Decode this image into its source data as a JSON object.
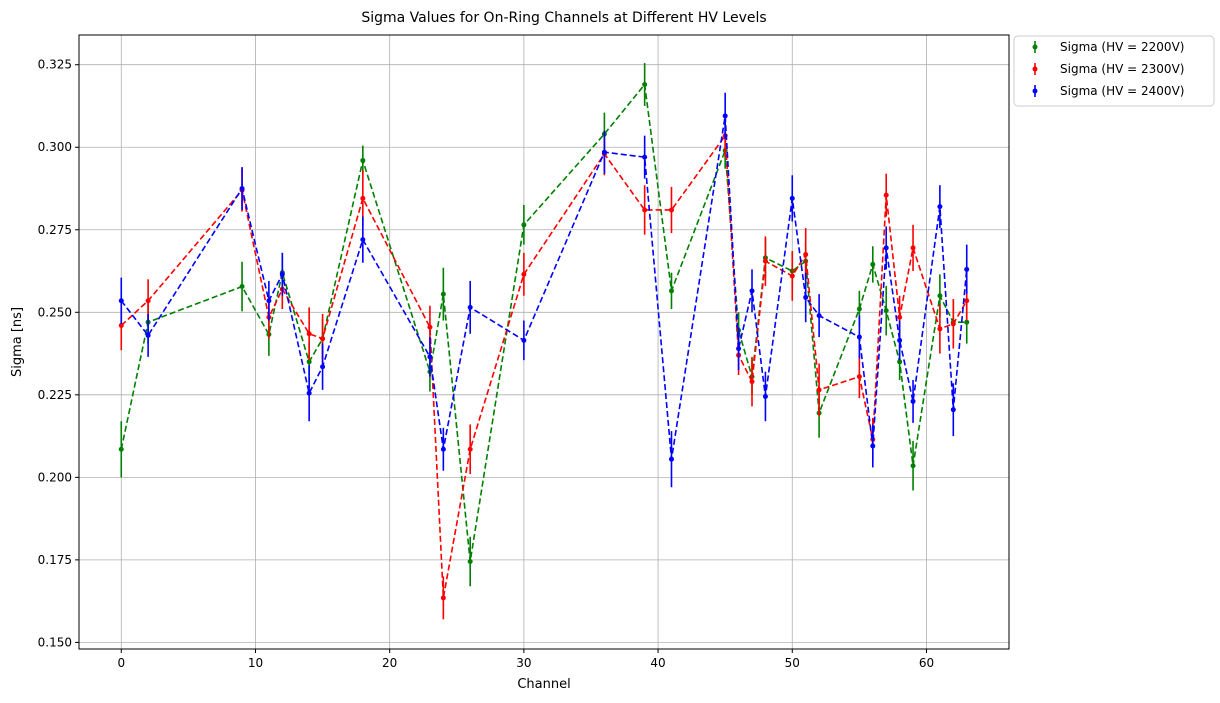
{
  "chart_data": {
    "type": "line",
    "title": "Sigma Values for On-Ring Channels at Different HV Levels",
    "xlabel": "Channel",
    "ylabel": "Sigma [ns]",
    "xlim": [
      -3.15,
      66.15
    ],
    "ylim": [
      0.148,
      0.334
    ],
    "xticks": [
      0,
      10,
      20,
      30,
      40,
      50,
      60
    ],
    "xtick_labels": [
      "0",
      "10",
      "20",
      "30",
      "40",
      "50",
      "60"
    ],
    "yticks": [
      0.15,
      0.175,
      0.2,
      0.225,
      0.25,
      0.275,
      0.3,
      0.325
    ],
    "ytick_labels": [
      "0.150",
      "0.175",
      "0.200",
      "0.225",
      "0.250",
      "0.275",
      "0.300",
      "0.325"
    ],
    "grid": true,
    "legend_position": "outside-top-right",
    "x": [
      0,
      2,
      9,
      11,
      12,
      14,
      15,
      18,
      23,
      24,
      26,
      30,
      36,
      39,
      41,
      45,
      46,
      47,
      48,
      50,
      51,
      52,
      55,
      56,
      57,
      58,
      59,
      61,
      62,
      63
    ],
    "series": [
      {
        "name": "Sigma (HV = 2200V)",
        "color": "#008000",
        "values": [
          0.2085,
          0.247,
          0.2578,
          0.2433,
          0.262,
          0.235,
          0.242,
          0.296,
          0.232,
          0.2555,
          0.1745,
          0.2765,
          0.304,
          0.319,
          0.2565,
          0.299,
          0.2445,
          0.2305,
          0.2665,
          0.2625,
          0.2655,
          0.2195,
          0.251,
          0.2645,
          0.2505,
          0.235,
          0.2035,
          0.255,
          0.247,
          0.247
        ],
        "errors": [
          0.0085,
          0.0065,
          0.0075,
          0.0065,
          0.006,
          0.006,
          0.006,
          0.0045,
          0.006,
          0.008,
          0.0075,
          0.006,
          0.0065,
          0.0065,
          0.0055,
          0.0055,
          0.0055,
          0.0055,
          0.006,
          0.006,
          0.006,
          0.0075,
          0.0055,
          0.0055,
          0.0075,
          0.0055,
          0.0075,
          0.0065,
          0.0065,
          0.0065
        ]
      },
      {
        "name": "Sigma (HV = 2300V)",
        "color": "#ff0000",
        "values": [
          0.246,
          0.2535,
          0.287,
          0.2485,
          0.257,
          0.2435,
          0.242,
          0.2845,
          0.2455,
          0.1635,
          0.2085,
          0.2615,
          0.298,
          0.281,
          0.281,
          0.3035,
          0.237,
          0.229,
          0.2655,
          0.261,
          0.2675,
          0.2265,
          0.2305,
          0.2115,
          0.2855,
          0.2485,
          0.2695,
          0.245,
          0.2465,
          0.2535
        ],
        "errors": [
          0.0075,
          0.0065,
          0.0065,
          0.0065,
          0.006,
          0.008,
          0.0075,
          0.0085,
          0.0065,
          0.0065,
          0.0075,
          0.0065,
          0.0065,
          0.0075,
          0.007,
          0.0065,
          0.006,
          0.0075,
          0.0075,
          0.0075,
          0.008,
          0.008,
          0.0065,
          0.0065,
          0.0065,
          0.0065,
          0.007,
          0.0075,
          0.0075,
          0.006
        ]
      },
      {
        "name": "Sigma (HV = 2400V)",
        "color": "#0000ff",
        "values": [
          0.2535,
          0.243,
          0.2875,
          0.2535,
          0.2615,
          0.2255,
          0.2335,
          0.272,
          0.2365,
          0.2085,
          0.2515,
          0.2415,
          0.2985,
          0.297,
          0.2055,
          0.3095,
          0.239,
          0.2565,
          0.2245,
          0.2845,
          0.2545,
          0.249,
          0.2425,
          0.2095,
          0.2695,
          0.2415,
          0.223,
          0.282,
          0.2205,
          0.263
        ],
        "errors": [
          0.007,
          0.0065,
          0.0065,
          0.006,
          0.0065,
          0.0085,
          0.007,
          0.007,
          0.006,
          0.0065,
          0.008,
          0.006,
          0.0065,
          0.0065,
          0.0085,
          0.007,
          0.0065,
          0.0065,
          0.0075,
          0.007,
          0.0075,
          0.0065,
          0.0065,
          0.0065,
          0.0065,
          0.006,
          0.0065,
          0.0065,
          0.008,
          0.0075
        ]
      }
    ]
  }
}
